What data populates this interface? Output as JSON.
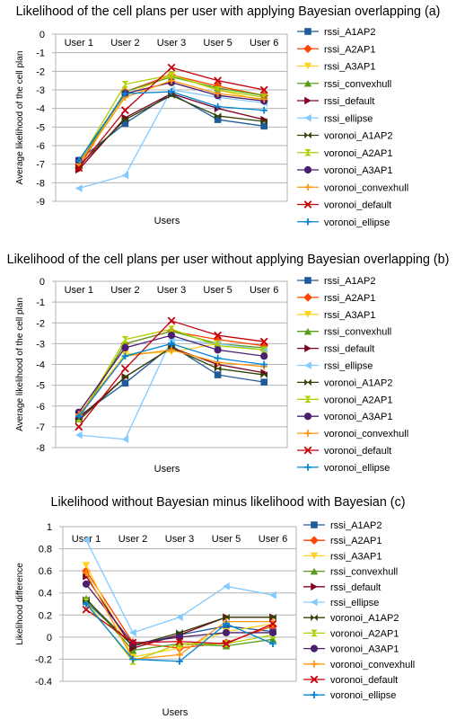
{
  "series_styles": [
    {
      "name": "rssi_A1AP2",
      "color": "#1f5b99",
      "marker": "square"
    },
    {
      "name": "rssi_A2AP1",
      "color": "#ff4500",
      "marker": "diamond"
    },
    {
      "name": "rssi_A3AP1",
      "color": "#ffd320",
      "marker": "triangle-down"
    },
    {
      "name": "rssi_convexhull",
      "color": "#579d1c",
      "marker": "triangle-up"
    },
    {
      "name": "rssi_default",
      "color": "#7e0021",
      "marker": "triangle-right"
    },
    {
      "name": "rssi_ellipse",
      "color": "#83caff",
      "marker": "triangle-left"
    },
    {
      "name": "voronoi_A1AP2",
      "color": "#314004",
      "marker": "bowtie"
    },
    {
      "name": "voronoi_A2AP1",
      "color": "#aecf00",
      "marker": "hourglass"
    },
    {
      "name": "voronoi_A3AP1",
      "color": "#4b1f6f",
      "marker": "circle"
    },
    {
      "name": "voronoi_convexhull",
      "color": "#ff950e",
      "marker": "plus"
    },
    {
      "name": "voronoi_default",
      "color": "#c5000b",
      "marker": "x"
    },
    {
      "name": "voronoi_ellipse",
      "color": "#0084d1",
      "marker": "plus"
    }
  ],
  "chart_data": [
    {
      "type": "line",
      "title": "Likelihood of the cell plans per user with applying Bayesian overlapping (a)",
      "xlabel": "Users",
      "ylabel": "Average likelihood of the cell plan",
      "categories": [
        "User 1",
        "User 2",
        "User 3",
        "User 5",
        "User 6"
      ],
      "ylim": [
        -9,
        0
      ],
      "yticks": [
        "0",
        "-1",
        "-2",
        "-3",
        "-4",
        "-5",
        "-6",
        "-7",
        "-8",
        "-9"
      ],
      "grid": true,
      "legend_position": "right",
      "series": [
        {
          "name": "rssi_A1AP2",
          "values": [
            -6.8,
            -4.8,
            -3.2,
            -4.6,
            -4.95
          ]
        },
        {
          "name": "rssi_A2AP1",
          "values": [
            -7.2,
            -3.1,
            -2.2,
            -2.8,
            -3.3
          ]
        },
        {
          "name": "rssi_A3AP1",
          "values": [
            -7.0,
            -3.3,
            -2.2,
            -3.0,
            -3.6
          ]
        },
        {
          "name": "rssi_convexhull",
          "values": [
            -7.0,
            -3.1,
            -2.3,
            -2.9,
            -3.3
          ]
        },
        {
          "name": "rssi_default",
          "values": [
            -7.3,
            -4.5,
            -3.2,
            -4.0,
            -4.6
          ]
        },
        {
          "name": "rssi_ellipse",
          "values": [
            -8.3,
            -7.6,
            -3.0,
            -3.4,
            -3.7
          ]
        },
        {
          "name": "voronoi_A1AP2",
          "values": [
            -7.1,
            -4.6,
            -3.3,
            -4.4,
            -4.7
          ]
        },
        {
          "name": "voronoi_A2AP1",
          "values": [
            -6.9,
            -2.7,
            -2.2,
            -3.0,
            -3.4
          ]
        },
        {
          "name": "voronoi_A3AP1",
          "values": [
            -6.8,
            -3.2,
            -2.6,
            -3.3,
            -3.6
          ]
        },
        {
          "name": "voronoi_convexhull",
          "values": [
            -7.0,
            -3.4,
            -2.5,
            -3.2,
            -3.5
          ]
        },
        {
          "name": "voronoi_default",
          "values": [
            -7.2,
            -4.1,
            -1.8,
            -2.5,
            -3.0
          ]
        },
        {
          "name": "voronoi_ellipse",
          "values": [
            -6.8,
            -3.2,
            -3.1,
            -3.9,
            -4.1
          ]
        }
      ]
    },
    {
      "type": "line",
      "title": "Likelihood of the cell plans per user without applying Bayesian overlapping (b)",
      "xlabel": "Users",
      "ylabel": "Average likelihood of the cell plan",
      "categories": [
        "User 1",
        "User 2",
        "User 3",
        "User 5",
        "User 6"
      ],
      "ylim": [
        -8,
        0
      ],
      "yticks": [
        "0",
        "-1",
        "-2",
        "-3",
        "-4",
        "-5",
        "-6",
        "-7",
        "-8"
      ],
      "grid": true,
      "legend_position": "right",
      "series": [
        {
          "name": "rssi_A1AP2",
          "values": [
            -6.5,
            -4.9,
            -3.1,
            -4.5,
            -4.85
          ]
        },
        {
          "name": "rssi_A2AP1",
          "values": [
            -6.6,
            -3.0,
            -2.4,
            -2.8,
            -3.1
          ]
        },
        {
          "name": "rssi_A3AP1",
          "values": [
            -6.4,
            -3.5,
            -3.4,
            -3.0,
            -3.3
          ]
        },
        {
          "name": "rssi_convexhull",
          "values": [
            -6.6,
            -3.0,
            -2.4,
            -3.0,
            -3.2
          ]
        },
        {
          "name": "rssi_default",
          "values": [
            -6.6,
            -4.6,
            -3.2,
            -4.0,
            -4.4
          ]
        },
        {
          "name": "rssi_ellipse",
          "values": [
            -7.4,
            -7.6,
            -2.8,
            -3.0,
            -3.3
          ]
        },
        {
          "name": "voronoi_A1AP2",
          "values": [
            -6.7,
            -4.6,
            -3.2,
            -4.2,
            -4.5
          ]
        },
        {
          "name": "voronoi_A2AP1",
          "values": [
            -6.6,
            -2.8,
            -2.3,
            -3.1,
            -3.3
          ]
        },
        {
          "name": "voronoi_A3AP1",
          "values": [
            -6.3,
            -3.2,
            -2.6,
            -3.3,
            -3.6
          ]
        },
        {
          "name": "voronoi_convexhull",
          "values": [
            -6.4,
            -3.6,
            -3.3,
            -3.9,
            -4.1
          ]
        },
        {
          "name": "voronoi_default",
          "values": [
            -7.0,
            -4.2,
            -1.9,
            -2.6,
            -2.9
          ]
        },
        {
          "name": "voronoi_ellipse",
          "values": [
            -6.5,
            -3.6,
            -3.0,
            -3.7,
            -4.0
          ]
        }
      ]
    },
    {
      "type": "line",
      "title": "Likelihood without Bayesian minus likelihood with Bayesian (c)",
      "xlabel": "Users",
      "ylabel": "Likelihood difference",
      "categories": [
        "User 1",
        "User 2",
        "User 3",
        "User 5",
        "User 6"
      ],
      "ylim": [
        -0.4,
        1
      ],
      "yticks": [
        "1",
        "0.8",
        "0.6",
        "0.4",
        "0.2",
        "0",
        "-0.2",
        "-0.4"
      ],
      "grid": true,
      "legend_position": "right",
      "series": [
        {
          "name": "rssi_A1AP2",
          "values": [
            0.32,
            -0.08,
            0.02,
            0.1,
            0.05
          ]
        },
        {
          "name": "rssi_A2AP1",
          "values": [
            0.6,
            -0.05,
            -0.1,
            -0.05,
            0.1
          ]
        },
        {
          "name": "rssi_A3AP1",
          "values": [
            0.65,
            -0.18,
            -0.1,
            0.05,
            0.12
          ]
        },
        {
          "name": "rssi_convexhull",
          "values": [
            0.35,
            -0.12,
            -0.06,
            -0.08,
            -0.02
          ]
        },
        {
          "name": "rssi_default",
          "values": [
            0.55,
            -0.1,
            0.02,
            0.18,
            0.18
          ]
        },
        {
          "name": "rssi_ellipse",
          "values": [
            0.88,
            0.04,
            0.18,
            0.46,
            0.38
          ]
        },
        {
          "name": "voronoi_A1AP2",
          "values": [
            0.34,
            -0.08,
            0.04,
            0.18,
            0.18
          ]
        },
        {
          "name": "voronoi_A2AP1",
          "values": [
            0.32,
            -0.22,
            -0.06,
            -0.06,
            0.02
          ]
        },
        {
          "name": "voronoi_A3AP1",
          "values": [
            0.48,
            -0.06,
            0.0,
            0.04,
            0.04
          ]
        },
        {
          "name": "voronoi_convexhull",
          "values": [
            0.58,
            -0.2,
            -0.16,
            0.14,
            0.14
          ]
        },
        {
          "name": "voronoi_default",
          "values": [
            0.25,
            -0.05,
            -0.04,
            -0.06,
            0.12
          ]
        },
        {
          "name": "voronoi_ellipse",
          "values": [
            0.3,
            -0.2,
            -0.22,
            0.12,
            -0.06
          ]
        }
      ]
    }
  ]
}
